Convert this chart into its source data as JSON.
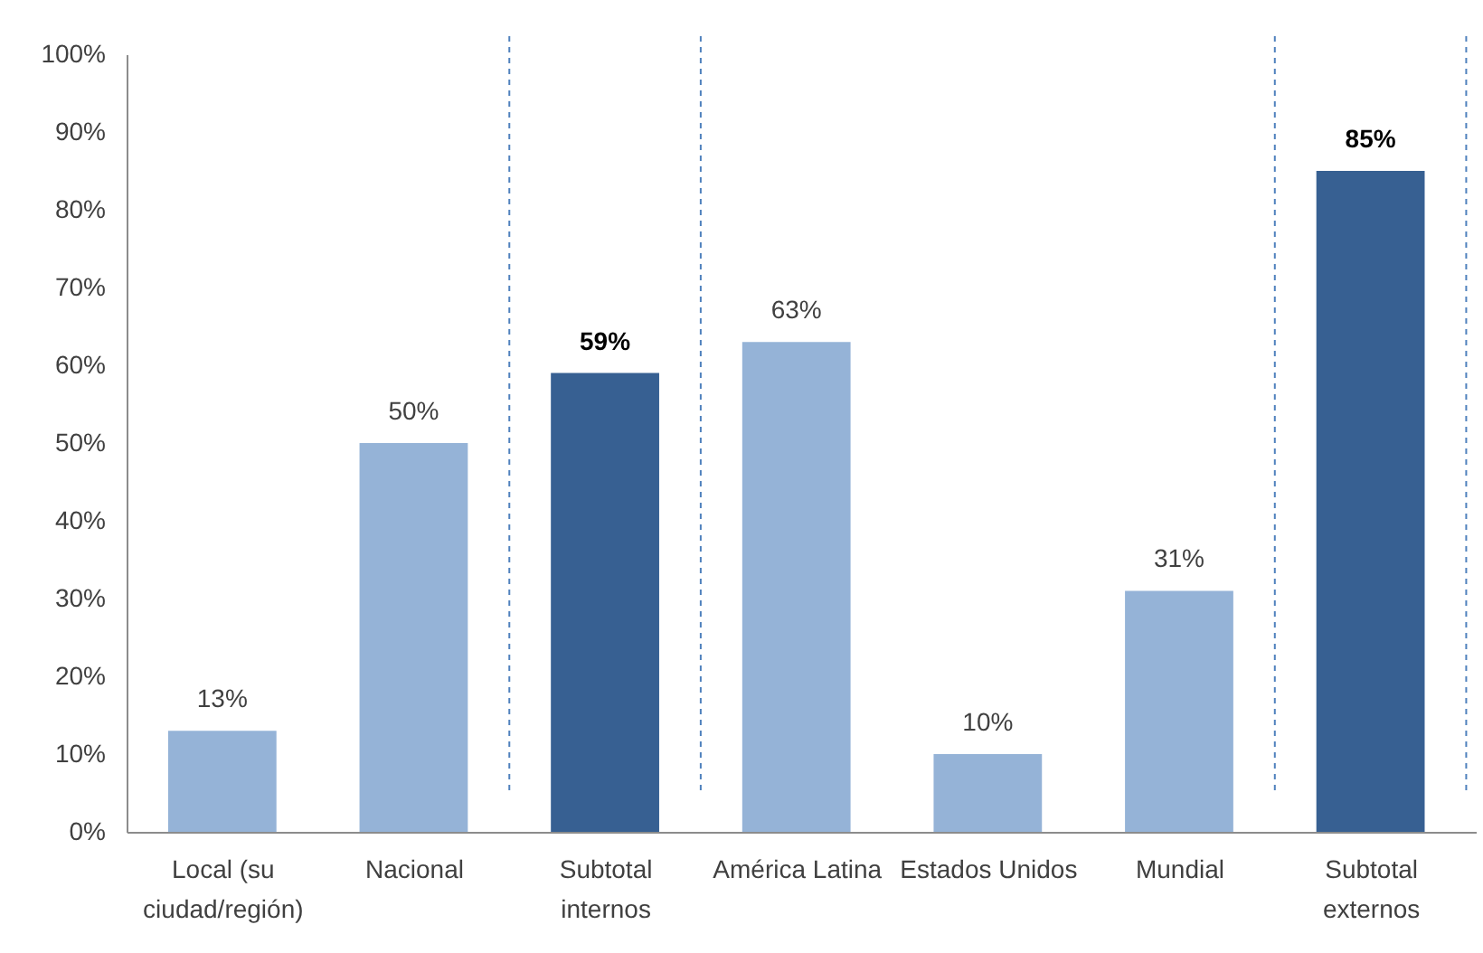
{
  "chart_data": {
    "type": "bar",
    "categories": [
      "Local (su ciudad/región)",
      "Nacional",
      "Subtotal internos",
      "América Latina",
      "Estados Unidos",
      "Mundial",
      "Subtotal externos"
    ],
    "values": [
      13,
      50,
      59,
      63,
      10,
      31,
      85
    ],
    "colors": [
      "#95b3d7",
      "#95b3d7",
      "#376092",
      "#95b3d7",
      "#95b3d7",
      "#95b3d7",
      "#376092"
    ],
    "value_labels": [
      "13%",
      "50%",
      "59%",
      "63%",
      "10%",
      "31%",
      "85%"
    ],
    "ylim": [
      0,
      100
    ],
    "yticks": [
      {
        "value": 0,
        "label": "0%"
      },
      {
        "value": 10,
        "label": "10%"
      },
      {
        "value": 20,
        "label": "20%"
      },
      {
        "value": 30,
        "label": "30%"
      },
      {
        "value": 40,
        "label": "40%"
      },
      {
        "value": 50,
        "label": "50%"
      },
      {
        "value": 60,
        "label": "60%"
      },
      {
        "value": 70,
        "label": "70%"
      },
      {
        "value": 80,
        "label": "80%"
      },
      {
        "value": 90,
        "label": "90%"
      },
      {
        "value": 100,
        "label": "100%"
      }
    ]
  }
}
